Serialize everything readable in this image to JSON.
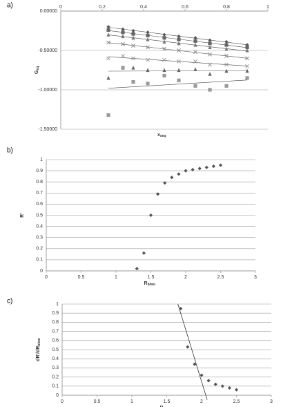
{
  "chart_data": [
    {
      "type": "scatter",
      "label": "a)",
      "x_label": "x",
      "x_label_sub": "seq",
      "y_label": "G",
      "y_label_sub": "eq",
      "x": [
        0.23,
        0.3,
        0.35,
        0.42,
        0.5,
        0.57,
        0.65,
        0.72,
        0.8,
        0.9
      ],
      "series": [
        {
          "color": "#555555",
          "marker": "diamond",
          "values": [
            -0.2,
            -0.23,
            -0.25,
            -0.27,
            -0.3,
            -0.32,
            -0.34,
            -0.37,
            -0.39,
            -0.43
          ]
        },
        {
          "color": "#666666",
          "marker": "square",
          "values": [
            -0.24,
            -0.27,
            -0.29,
            -0.31,
            -0.34,
            -0.36,
            -0.38,
            -0.41,
            -0.43,
            -0.46
          ]
        },
        {
          "color": "#777777",
          "marker": "triangle",
          "values": [
            -0.3,
            -0.32,
            -0.34,
            -0.36,
            -0.39,
            -0.41,
            -0.43,
            -0.46,
            -0.48,
            -0.5
          ]
        },
        {
          "color": "#888888",
          "marker": "x",
          "values": [
            -0.4,
            -0.42,
            -0.44,
            -0.46,
            -0.48,
            -0.5,
            -0.52,
            -0.55,
            -0.57,
            -0.6
          ]
        },
        {
          "color": "#999999",
          "marker": "x",
          "values": [
            -0.6,
            -0.57,
            -0.6,
            -0.62,
            -0.62,
            -0.64,
            -0.64,
            -0.68,
            -0.68,
            -0.7
          ]
        },
        {
          "color": "#666666",
          "marker": "triangle",
          "values": [
            -0.85,
            -0.72,
            -0.72,
            -0.75,
            -0.75,
            -0.75,
            -0.74,
            -0.8,
            -0.76,
            -0.76
          ]
        },
        {
          "color": "#999999",
          "marker": "square",
          "values": [
            -1.32,
            -0.72,
            -0.9,
            -0.92,
            -0.82,
            -0.88,
            -0.95,
            -1.0,
            -0.95,
            -0.85
          ]
        }
      ],
      "trendline": true,
      "xaxis_top": true,
      "xlim": [
        0,
        1
      ],
      "xticks": [
        0,
        0.2,
        0.4,
        0.6,
        0.8,
        1
      ],
      "ylim": [
        -1.5,
        0
      ],
      "yticks": [
        {
          "value": 0,
          "label": "0.00000"
        },
        {
          "value": -0.5,
          "label": "-0.50000"
        },
        {
          "value": -1,
          "label": "-1.00000"
        },
        {
          "value": -1.5,
          "label": "-1.50000"
        }
      ],
      "grid": true
    },
    {
      "type": "scatter",
      "label": "b)",
      "x_label": "R",
      "x_label_sub": "b/wo",
      "y_label": "R'",
      "y_label_sub": "",
      "x": [
        1.3,
        1.4,
        1.5,
        1.6,
        1.7,
        1.8,
        1.9,
        2.0,
        2.1,
        2.2,
        2.3,
        2.4,
        2.5
      ],
      "series": [
        {
          "color": "#555555",
          "marker": "diamond",
          "values": [
            0.02,
            0.16,
            0.5,
            0.69,
            0.79,
            0.84,
            0.87,
            0.9,
            0.91,
            0.92,
            0.93,
            0.94,
            0.95
          ]
        }
      ],
      "xlim": [
        0,
        3
      ],
      "xticks": [
        0,
        0.5,
        1,
        1.5,
        2,
        2.5,
        3
      ],
      "ylim": [
        0,
        1
      ],
      "yticks": [
        0,
        0.1,
        0.2,
        0.3,
        0.4,
        0.5,
        0.6,
        0.7,
        0.8,
        0.9,
        1
      ],
      "grid": true
    },
    {
      "type": "scatter",
      "label": "c)",
      "x_label": "R",
      "x_label_sub": "b/wo",
      "y_label": "dR'/dR",
      "y_label_sub": "b/wo",
      "x": [
        1.7,
        1.8,
        1.9,
        2.0,
        2.1,
        2.2,
        2.3,
        2.4,
        2.5
      ],
      "series": [
        {
          "color": "#555555",
          "marker": "diamond",
          "values": [
            0.95,
            0.53,
            0.34,
            0.22,
            0.16,
            0.12,
            0.1,
            0.08,
            0.06
          ]
        }
      ],
      "tangent": {
        "x": [
          1.66,
          2.08
        ],
        "y": [
          1,
          -0.05
        ]
      },
      "xlim": [
        0,
        3
      ],
      "xticks": [
        0,
        0.5,
        1,
        1.5,
        2,
        2.5,
        3
      ],
      "ylim": [
        0,
        1
      ],
      "yticks": [
        0,
        0.1,
        0.2,
        0.3,
        0.4,
        0.5,
        0.6,
        0.7,
        0.8,
        0.9,
        1
      ],
      "grid": true
    }
  ]
}
